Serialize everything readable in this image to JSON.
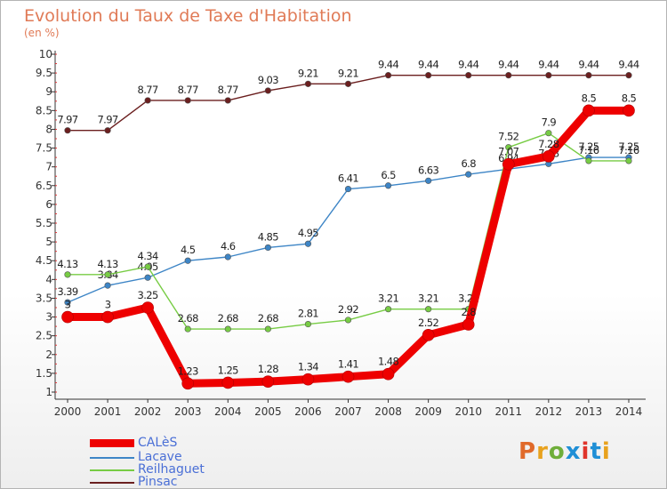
{
  "header": {
    "title": "Evolution du Taux de Taxe d'Habitation",
    "subtitle": "(en %)"
  },
  "logo": {
    "text": "Proxiti",
    "colors": [
      "#e06a2a",
      "#e8a21e",
      "#6fae3a",
      "#1f8fd6",
      "#e0342a",
      "#1f8fd6",
      "#e8a21e"
    ]
  },
  "chart_data": {
    "type": "line",
    "title": "Evolution du Taux de Taxe d'Habitation",
    "subtitle": "(en %)",
    "xlabel": "",
    "ylabel": "",
    "categories": [
      "2000",
      "2001",
      "2002",
      "2003",
      "2004",
      "2005",
      "2006",
      "2007",
      "2008",
      "2009",
      "2010",
      "2011",
      "2012",
      "2013",
      "2014"
    ],
    "ylim": [
      1,
      10
    ],
    "yticks": [
      "1",
      "1.5",
      "2",
      "2.5",
      "3",
      "3.5",
      "4",
      "4.5",
      "5",
      "5.5",
      "6",
      "6.5",
      "7",
      "7.5",
      "8",
      "8.5",
      "9",
      "9.5",
      "10"
    ],
    "grid": false,
    "legend_position": "bottom-left",
    "series": [
      {
        "name": "CALèS",
        "color": "#ee0000",
        "values": [
          3,
          3,
          3.25,
          1.23,
          1.25,
          1.28,
          1.34,
          1.41,
          1.48,
          2.52,
          2.8,
          7.07,
          7.28,
          8.5,
          8.5
        ],
        "labels": [
          "3",
          "3",
          "3.25",
          "1.23",
          "1.25",
          "1.28",
          "1.34",
          "1.41",
          "1.48",
          "2.52",
          "2.8",
          "7.07",
          "7.28",
          "8.5",
          "8.5"
        ]
      },
      {
        "name": "Lacave",
        "color": "#3d85c6",
        "values": [
          3.39,
          3.84,
          4.05,
          4.5,
          4.6,
          4.85,
          4.95,
          6.41,
          6.5,
          6.63,
          6.8,
          6.94,
          7.08,
          7.25,
          7.25
        ],
        "labels": [
          "3.39",
          "3.84",
          "4.05",
          "4.5",
          "4.6",
          "4.85",
          "4.95",
          "6.41",
          "6.5",
          "6.63",
          "6.8",
          "6.94",
          "7.08",
          "7.25",
          "7.25"
        ]
      },
      {
        "name": "Reilhaguet",
        "color": "#77cc44",
        "values": [
          4.13,
          4.13,
          4.34,
          2.68,
          2.68,
          2.68,
          2.81,
          2.92,
          3.21,
          3.21,
          3.21,
          7.52,
          7.9,
          7.16,
          7.16
        ],
        "labels": [
          "4.13",
          "4.13",
          "4.34",
          "2.68",
          "2.68",
          "2.68",
          "2.81",
          "2.92",
          "3.21",
          "3.21",
          "3.21",
          "7.52",
          "7.9",
          "7.16",
          "7.16"
        ]
      },
      {
        "name": "Pinsac",
        "color": "#6b1f1f",
        "values": [
          7.97,
          7.97,
          8.77,
          8.77,
          8.77,
          9.03,
          9.21,
          9.21,
          9.44,
          9.44,
          9.44,
          9.44,
          9.44,
          9.44,
          9.44
        ],
        "labels": [
          "7.97",
          "7.97",
          "8.77",
          "8.77",
          "8.77",
          "9.03",
          "9.21",
          "9.21",
          "9.44",
          "9.44",
          "9.44",
          "9.44",
          "9.44",
          "9.44",
          "9.44"
        ]
      }
    ]
  }
}
